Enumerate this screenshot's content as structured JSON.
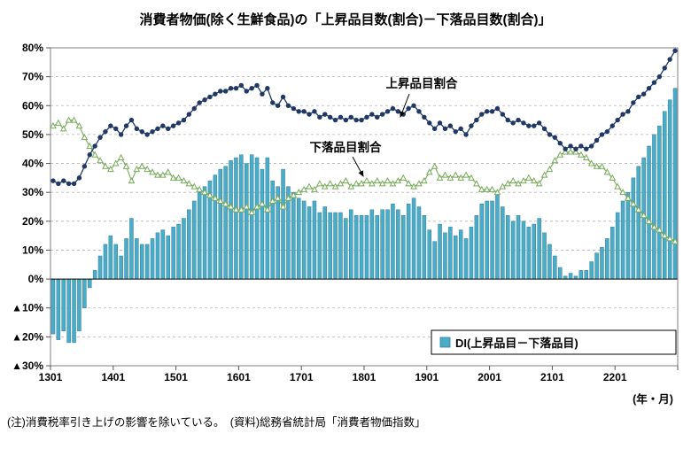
{
  "title": "消費者物価(除く生鮮食品)の「上昇品目数(割合)－下落品目数(割合)」",
  "footnote": "(注)消費税率引き上げの影響を除いている。　(資料)総務省統計局「消費者物価指数」",
  "x_axis_unit": "(年・月)",
  "annotations": {
    "rise": "上昇品目割合",
    "fall": "下落品目割合"
  },
  "legend": {
    "di": "DI(上昇品目－下落品目)"
  },
  "colors": {
    "bar": "#4bacc6",
    "bar_border": "#2e7ea6",
    "rise_line": "#1f3864",
    "fall_line": "#76ab58",
    "grid": "#b3b3b3",
    "axis": "#7f7f7f",
    "zero_line": "#000000"
  },
  "chart_data": {
    "type": "bar+line",
    "title": "消費者物価(除く生鮮食品)の「上昇品目数(割合)－下落品目数(割合)」",
    "ylim": [
      -30,
      80
    ],
    "grid": true,
    "y_ticks": [
      -30,
      -20,
      -10,
      0,
      10,
      20,
      30,
      40,
      50,
      60,
      70,
      80
    ],
    "y_tick_labels": [
      "▲30%",
      "▲20%",
      "▲10%",
      "0%",
      "10%",
      "20%",
      "30%",
      "40%",
      "50%",
      "60%",
      "70%",
      "80%"
    ],
    "x_tick_labels": [
      "1301",
      "1401",
      "1501",
      "1601",
      "1701",
      "1801",
      "1901",
      "2001",
      "2101",
      "2201"
    ],
    "x": [
      "1301",
      "1302",
      "1303",
      "1304",
      "1305",
      "1306",
      "1307",
      "1308",
      "1309",
      "1310",
      "1311",
      "1312",
      "1401",
      "1402",
      "1403",
      "1404",
      "1405",
      "1406",
      "1407",
      "1408",
      "1409",
      "1410",
      "1411",
      "1412",
      "1501",
      "1502",
      "1503",
      "1504",
      "1505",
      "1506",
      "1507",
      "1508",
      "1509",
      "1510",
      "1511",
      "1512",
      "1601",
      "1602",
      "1603",
      "1604",
      "1605",
      "1606",
      "1607",
      "1608",
      "1609",
      "1610",
      "1611",
      "1612",
      "1701",
      "1702",
      "1703",
      "1704",
      "1705",
      "1706",
      "1707",
      "1708",
      "1709",
      "1710",
      "1711",
      "1712",
      "1801",
      "1802",
      "1803",
      "1804",
      "1805",
      "1806",
      "1807",
      "1808",
      "1809",
      "1810",
      "1811",
      "1812",
      "1901",
      "1902",
      "1903",
      "1904",
      "1905",
      "1906",
      "1907",
      "1908",
      "1909",
      "1910",
      "1911",
      "1912",
      "2001",
      "2002",
      "2003",
      "2004",
      "2005",
      "2006",
      "2007",
      "2008",
      "2009",
      "2010",
      "2011",
      "2012",
      "2101",
      "2102",
      "2103",
      "2104",
      "2105",
      "2106",
      "2107",
      "2108",
      "2109",
      "2110",
      "2111",
      "2112",
      "2201",
      "2202",
      "2203",
      "2204",
      "2205",
      "2206",
      "2207",
      "2208",
      "2209",
      "2210",
      "2211",
      "2212"
    ],
    "series": [
      {
        "name": "DI(上昇品目－下落品目)",
        "type": "bar",
        "values": [
          -19,
          -21,
          -18,
          -22,
          -22,
          -18,
          -10,
          -3,
          3,
          8,
          12,
          15,
          12,
          8,
          14,
          21,
          14,
          12,
          12,
          14,
          16,
          17,
          15,
          18,
          19,
          21,
          24,
          27,
          30,
          32,
          34,
          36,
          38,
          39,
          41,
          42,
          43,
          40,
          43,
          42,
          38,
          42,
          34,
          32,
          38,
          32,
          30,
          28,
          27,
          25,
          27,
          23,
          25,
          23,
          23,
          23,
          21,
          24,
          22,
          22,
          22,
          24,
          22,
          24,
          24,
          26,
          24,
          22,
          26,
          28,
          25,
          22,
          17,
          13,
          19,
          16,
          18,
          15,
          17,
          14,
          18,
          22,
          26,
          27,
          27,
          29,
          25,
          22,
          20,
          22,
          20,
          18,
          19,
          21,
          16,
          12,
          8,
          4,
          1,
          2,
          1,
          3,
          3,
          6,
          9,
          11,
          14,
          18,
          23,
          27,
          30,
          35,
          39,
          42,
          46,
          50,
          53,
          58,
          62,
          66
        ]
      },
      {
        "name": "上昇品目割合",
        "type": "line",
        "values": [
          34,
          33,
          34,
          33,
          33,
          35,
          39,
          43,
          46,
          49,
          51,
          53,
          52,
          50,
          53,
          55,
          52,
          51,
          50,
          51,
          52,
          53,
          52,
          53,
          54,
          55,
          57,
          59,
          61,
          62,
          63,
          64,
          65,
          65,
          66,
          66,
          67,
          65,
          66,
          67,
          64,
          66,
          61,
          60,
          63,
          60,
          59,
          58,
          58,
          57,
          58,
          56,
          57,
          56,
          55,
          56,
          55,
          56,
          55,
          55,
          56,
          57,
          56,
          57,
          58,
          59,
          58,
          57,
          59,
          60,
          58,
          56,
          54,
          52,
          54,
          52,
          53,
          51,
          52,
          50,
          53,
          55,
          57,
          58,
          58,
          59,
          57,
          55,
          54,
          55,
          54,
          53,
          53,
          54,
          52,
          50,
          49,
          47,
          45,
          46,
          45,
          46,
          45,
          46,
          48,
          50,
          51,
          53,
          55,
          57,
          58,
          61,
          63,
          64,
          66,
          68,
          70,
          73,
          76,
          79
        ]
      },
      {
        "name": "下落品目割合",
        "type": "line",
        "values": [
          53,
          54,
          52,
          55,
          55,
          53,
          49,
          46,
          43,
          41,
          39,
          38,
          40,
          42,
          39,
          34,
          38,
          39,
          38,
          37,
          36,
          36,
          37,
          35,
          35,
          34,
          33,
          32,
          31,
          30,
          29,
          28,
          27,
          26,
          25,
          24,
          24,
          25,
          23,
          25,
          26,
          24,
          27,
          28,
          25,
          28,
          29,
          30,
          31,
          32,
          31,
          33,
          32,
          33,
          32,
          33,
          34,
          32,
          33,
          33,
          34,
          33,
          34,
          33,
          34,
          33,
          34,
          35,
          33,
          32,
          33,
          34,
          37,
          39,
          35,
          36,
          35,
          36,
          35,
          36,
          35,
          33,
          31,
          31,
          31,
          30,
          32,
          33,
          34,
          33,
          34,
          35,
          34,
          33,
          36,
          38,
          41,
          43,
          44,
          44,
          44,
          43,
          42,
          40,
          39,
          39,
          37,
          35,
          32,
          30,
          28,
          26,
          24,
          22,
          20,
          18,
          17,
          15,
          14,
          13
        ]
      }
    ]
  }
}
